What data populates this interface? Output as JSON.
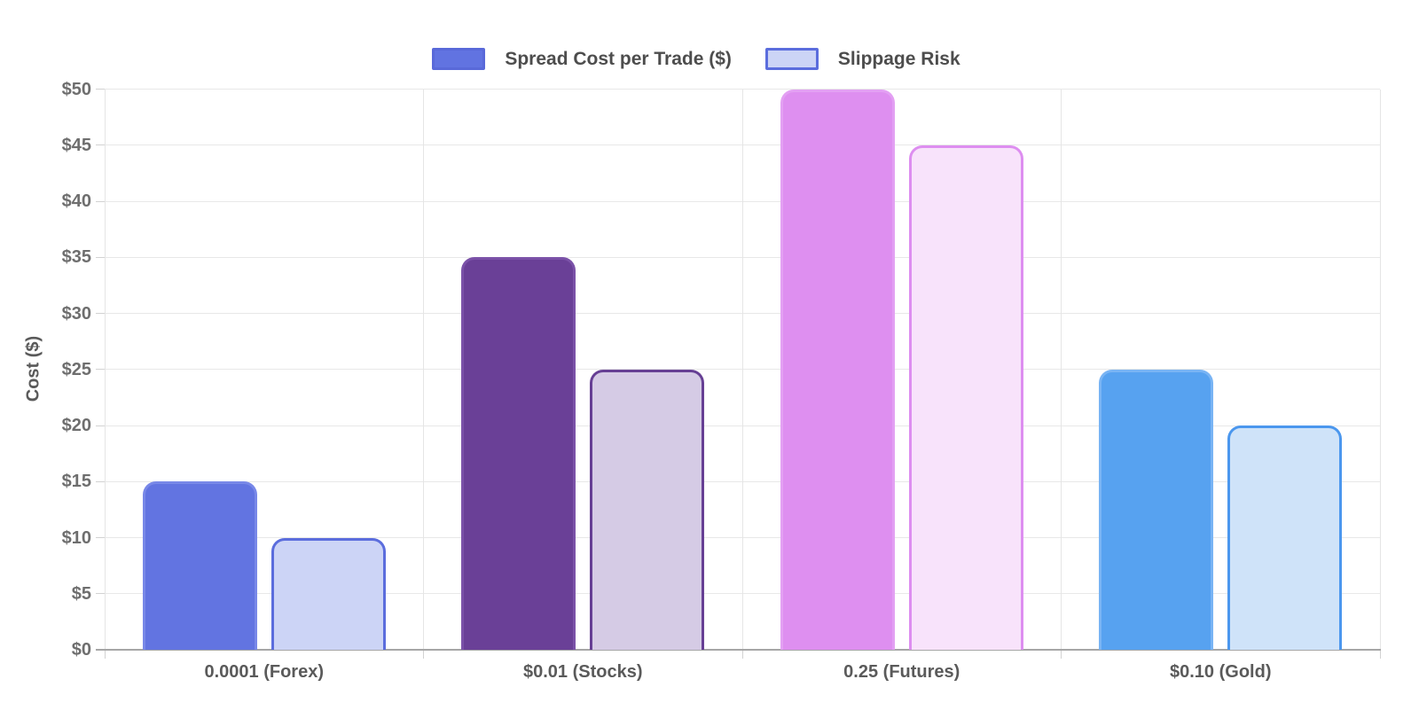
{
  "page": {
    "background": "#ffffff"
  },
  "chart_data": {
    "type": "bar",
    "title": "",
    "categories": [
      "0.0001 (Forex)",
      "$0.01 (Stocks)",
      "0.25 (Futures)",
      "$0.10 (Gold)"
    ],
    "series": [
      {
        "name": "Spread Cost per Trade ($)",
        "values": [
          15,
          35,
          50,
          25
        ]
      },
      {
        "name": "Slippage Risk",
        "values": [
          10,
          25,
          45,
          20
        ]
      }
    ],
    "xlabel": "",
    "ylabel": "Cost ($)",
    "ylim": [
      0,
      50
    ],
    "y_tick_step": 5,
    "y_tick_labels": [
      "$0",
      "$5",
      "$10",
      "$15",
      "$20",
      "$25",
      "$30",
      "$35",
      "$40",
      "$45",
      "$50"
    ],
    "grid": true,
    "legend_position": "top",
    "legend": {
      "spread": {
        "fill": "#6173e1",
        "border": "#5969d9"
      },
      "slippage": {
        "fill": "#ccd4f6",
        "border": "#5b6ddd"
      }
    },
    "category_colors": [
      {
        "spread_fill": "#6274e1",
        "spread_border": "#7888e8",
        "slip_fill": "#ccd4f6",
        "slip_border": "#5b6ddd"
      },
      {
        "spread_fill": "#6a4097",
        "spread_border": "#7b52a8",
        "slip_fill": "#d5cbe5",
        "slip_border": "#663f94"
      },
      {
        "spread_fill": "#de8ff0",
        "spread_border": "#e3a0f3",
        "slip_fill": "#f8e3fb",
        "slip_border": "#dd8ef0"
      },
      {
        "spread_fill": "#57a2f0",
        "spread_border": "#79b4f4",
        "slip_fill": "#cfe3f9",
        "slip_border": "#4b97ee"
      }
    ],
    "text_colors": {
      "ticks": "#6e6e6e",
      "labels": "#5a5a5a",
      "legend": "#4d4d4d"
    }
  }
}
